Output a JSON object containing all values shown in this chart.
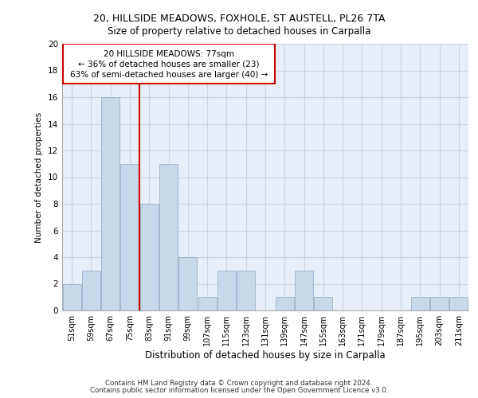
{
  "title1": "20, HILLSIDE MEADOWS, FOXHOLE, ST AUSTELL, PL26 7TA",
  "title2": "Size of property relative to detached houses in Carpalla",
  "xlabel": "Distribution of detached houses by size in Carpalla",
  "ylabel": "Number of detached properties",
  "categories": [
    "51sqm",
    "59sqm",
    "67sqm",
    "75sqm",
    "83sqm",
    "91sqm",
    "99sqm",
    "107sqm",
    "115sqm",
    "123sqm",
    "131sqm",
    "139sqm",
    "147sqm",
    "155sqm",
    "163sqm",
    "171sqm",
    "179sqm",
    "187sqm",
    "195sqm",
    "203sqm",
    "211sqm"
  ],
  "values": [
    2,
    3,
    16,
    11,
    8,
    11,
    4,
    1,
    3,
    3,
    0,
    1,
    3,
    1,
    0,
    0,
    0,
    0,
    1,
    1,
    1
  ],
  "bar_color": "#c8d8ea",
  "bar_edge_color": "#9ab0c8",
  "property_line_x": 3.5,
  "annotation_line1": "20 HILLSIDE MEADOWS: 77sqm",
  "annotation_line2": "← 36% of detached houses are smaller (23)",
  "annotation_line3": "63% of semi-detached houses are larger (40) →",
  "annotation_box_color": "#cc0000",
  "grid_color": "#c8d4e4",
  "background_color": "#e8eef8",
  "ylim": [
    0,
    20
  ],
  "yticks": [
    0,
    2,
    4,
    6,
    8,
    10,
    12,
    14,
    16,
    18,
    20
  ],
  "footer1": "Contains HM Land Registry data © Crown copyright and database right 2024.",
  "footer2": "Contains public sector information licensed under the Open Government Licence v3.0."
}
